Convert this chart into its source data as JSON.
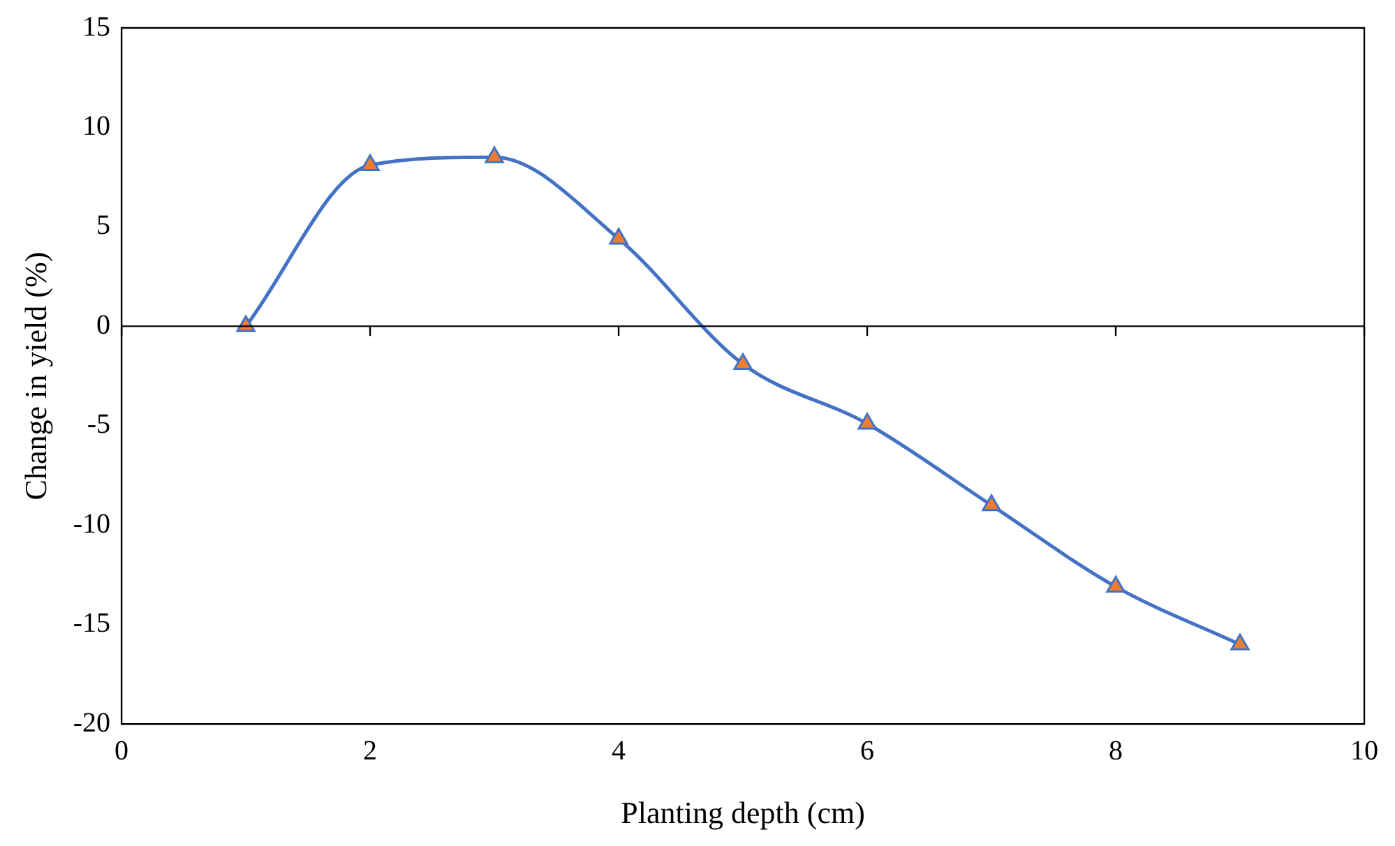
{
  "chart_data": {
    "type": "line",
    "xlabel": "Planting depth (cm)",
    "ylabel": "Change in yield (%)",
    "x": [
      1,
      2,
      3,
      4,
      5,
      6,
      7,
      8,
      9
    ],
    "series": [
      {
        "color": "#4472c4",
        "values": [
          0,
          8.1,
          8.5,
          4.4,
          -1.9,
          -4.9,
          -9.0,
          -13.1,
          -16.0
        ]
      }
    ],
    "xlim": [
      0,
      10
    ],
    "xticks": [
      0,
      2,
      4,
      6,
      8,
      10
    ],
    "ylim": [
      -20,
      15
    ],
    "yticks": [
      -20,
      -15,
      -10,
      -5,
      0,
      5,
      10,
      15
    ],
    "ref_lines": [
      {
        "axis": "y",
        "value": 0,
        "color": "#000000"
      }
    ],
    "grid": false,
    "legend": false,
    "marker": "triangle",
    "line_style": "solid"
  }
}
